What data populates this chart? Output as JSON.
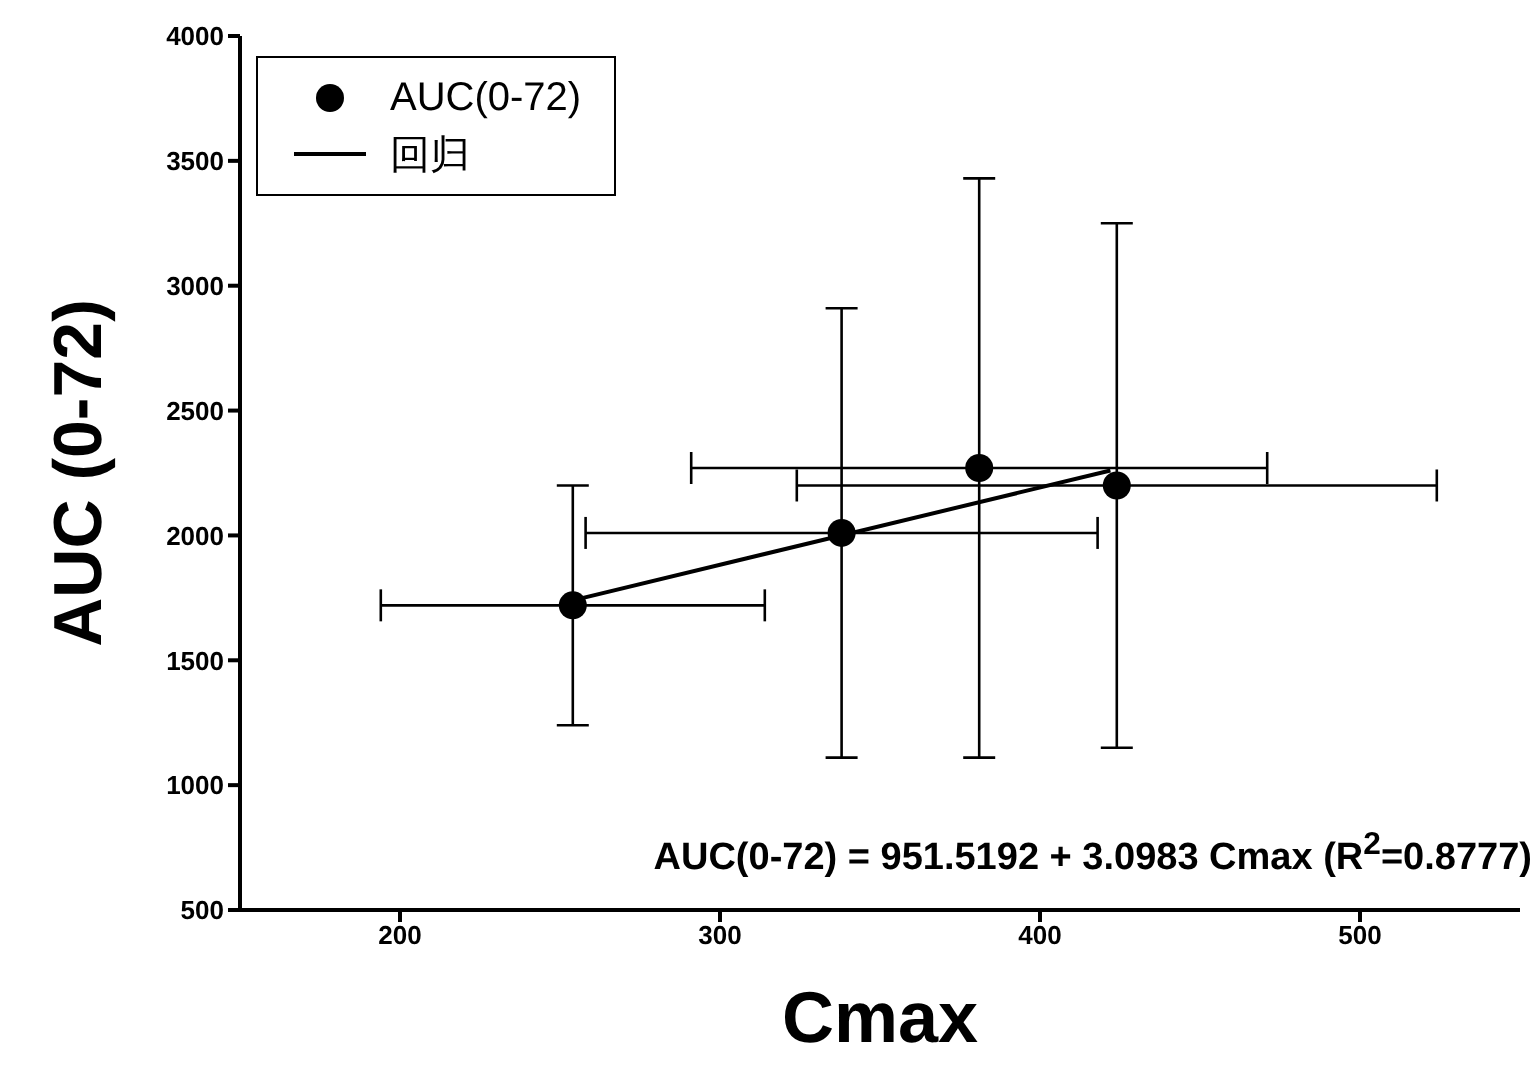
{
  "chart_data": {
    "type": "scatter",
    "xlabel": "Cmax",
    "ylabel": "AUC (0-72)",
    "xlim": [
      150,
      550
    ],
    "xticks": [
      200,
      300,
      400,
      500
    ],
    "ylim": [
      500,
      4000
    ],
    "yticks": [
      500,
      1000,
      1500,
      2000,
      2500,
      3000,
      3500,
      4000
    ],
    "grid": false,
    "legend": "top left",
    "marker": "circle",
    "series": [
      {
        "name": "AUC(0-72)",
        "color": "#000000",
        "x": [
          254,
          338,
          381,
          424
        ],
        "values": [
          1720,
          2010,
          2270,
          2200
        ],
        "errors": [
          480,
          900,
          1160,
          1050
        ],
        "xerrors": [
          60,
          80,
          90,
          100
        ]
      },
      {
        "name": "回归",
        "type": "line",
        "color": "#000000",
        "x": [
          254,
          422
        ],
        "values": [
          1740,
          2260
        ],
        "marker": "none",
        "line_style": "solid"
      }
    ],
    "annotations": [
      {
        "text": "AUC(0-72) = 951.5192 + 3.0983 Cmax (R$^{2}$=0.8777)"
      }
    ]
  }
}
